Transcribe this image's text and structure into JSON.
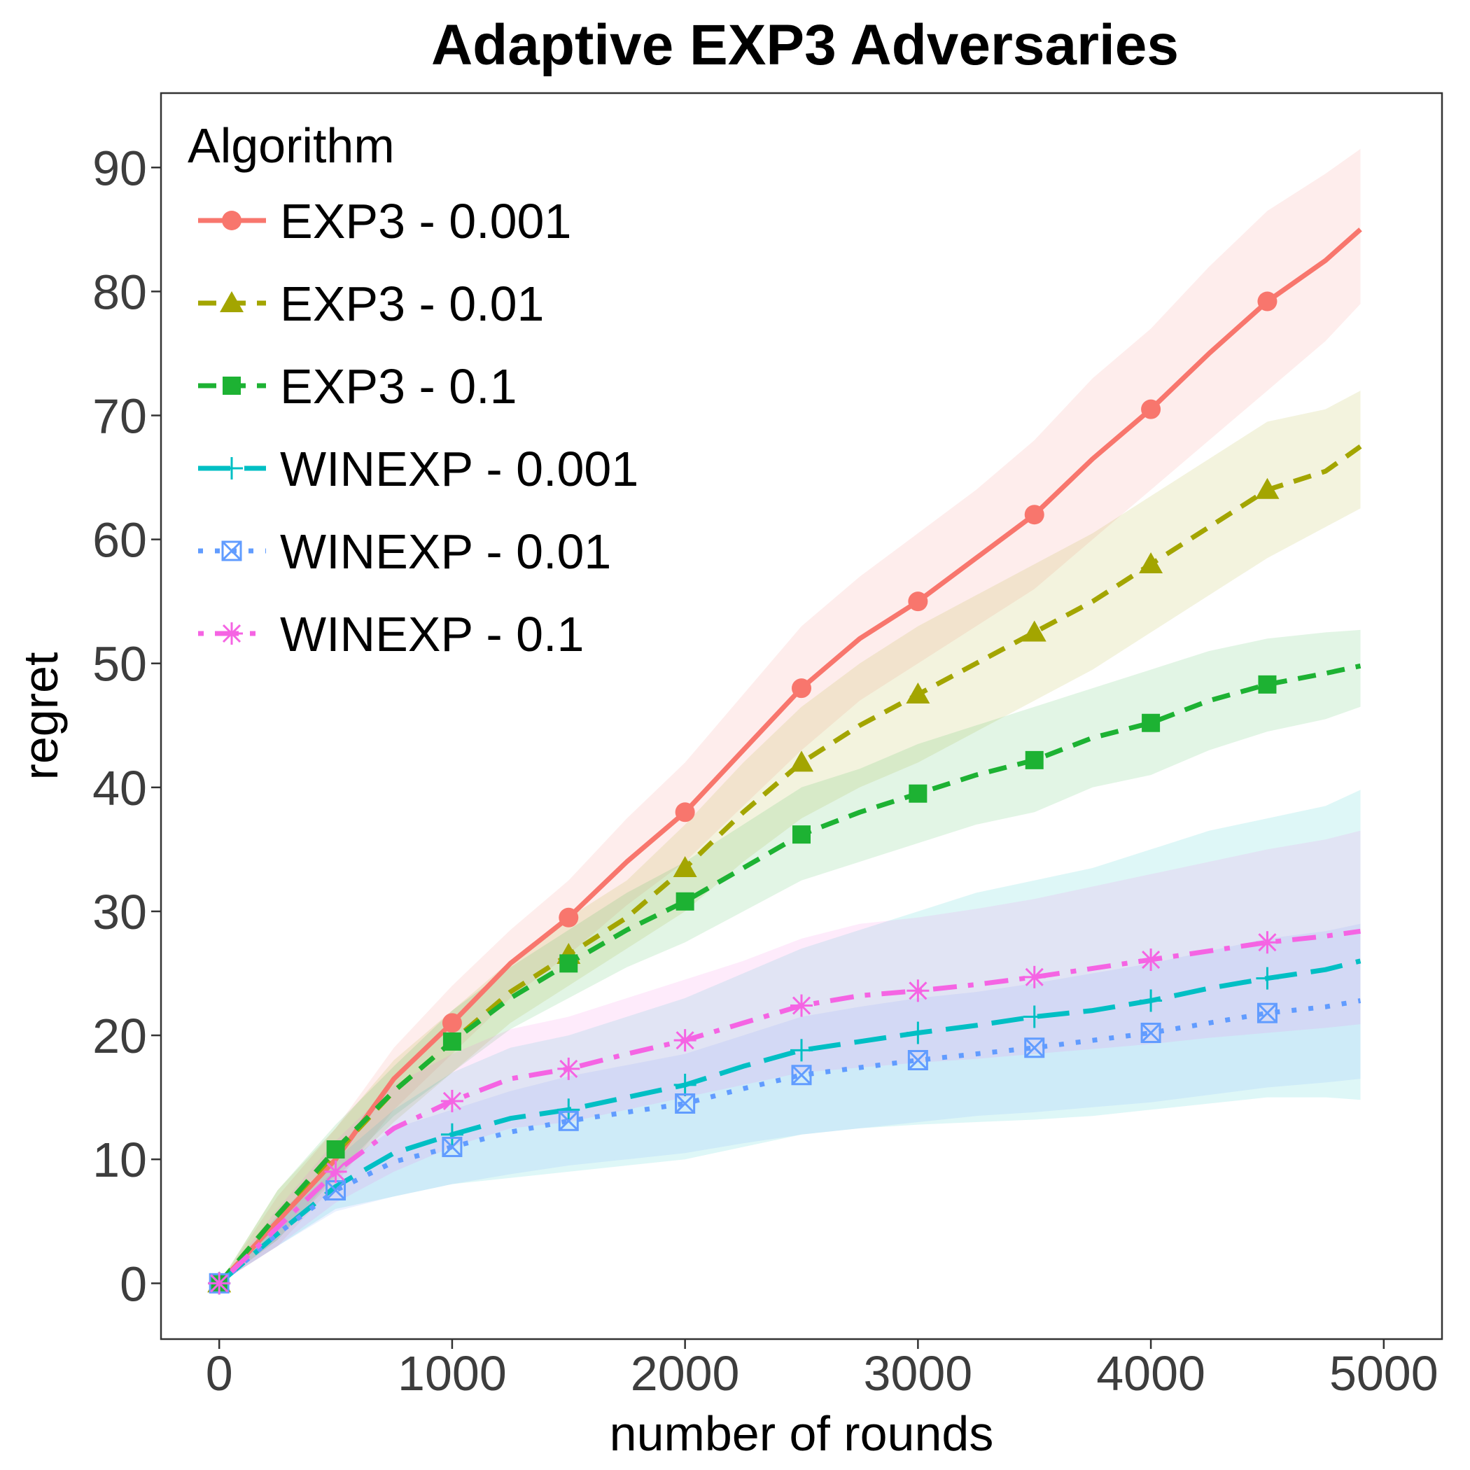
{
  "chart_data": {
    "type": "line",
    "title": "Adaptive EXP3 Adversaries",
    "xlabel": "number of rounds",
    "ylabel": "regret",
    "xlim": [
      -250,
      5250
    ],
    "ylim": [
      -4.5,
      96
    ],
    "xticks": [
      0,
      1000,
      2000,
      3000,
      4000,
      5000
    ],
    "yticks": [
      0,
      10,
      20,
      30,
      40,
      50,
      60,
      70,
      80,
      90
    ],
    "xtick_labels": [
      "0",
      "1000",
      "2000",
      "3000",
      "4000",
      "5000"
    ],
    "ytick_labels": [
      "0",
      "10",
      "20",
      "30",
      "40",
      "50",
      "60",
      "70",
      "80",
      "90"
    ],
    "grid": false,
    "legend": {
      "title": "Algorithm",
      "position": "top-left"
    },
    "series": [
      {
        "name": "EXP3 - 0.001",
        "color": "#F8766D",
        "linestyle": "solid",
        "marker": "circle",
        "x": [
          0,
          250,
          500,
          750,
          1000,
          1250,
          1500,
          1750,
          2000,
          2250,
          2500,
          2750,
          3000,
          3250,
          3500,
          3750,
          4000,
          4250,
          4500,
          4750,
          4900
        ],
        "y": [
          0,
          5,
          10,
          16.5,
          21,
          25.8,
          29.5,
          34,
          38,
          43,
          48,
          52,
          55,
          58.5,
          62,
          66.5,
          70.5,
          75,
          79.2,
          82.5,
          85
        ],
        "lower": [
          0,
          3,
          8,
          14,
          18.5,
          23,
          26.5,
          30.5,
          34,
          38.5,
          43,
          47,
          50,
          53,
          56,
          60,
          64,
          68,
          72,
          76,
          79
        ],
        "upper": [
          0,
          7,
          12.5,
          19,
          24,
          28.5,
          32.5,
          37.5,
          42,
          47.5,
          53,
          57,
          60.5,
          64,
          68,
          73,
          77,
          82,
          86.5,
          89.5,
          91.5
        ],
        "marker_x": [
          0,
          1000,
          1500,
          2000,
          2500,
          3000,
          3500,
          4000,
          4500
        ]
      },
      {
        "name": "EXP3 - 0.01",
        "color": "#A3A500",
        "linestyle": "dashed",
        "marker": "triangle",
        "x": [
          0,
          250,
          500,
          750,
          1000,
          1250,
          1500,
          1750,
          2000,
          2250,
          2500,
          2750,
          3000,
          3250,
          3500,
          3750,
          4000,
          4250,
          4500,
          4750,
          4900
        ],
        "y": [
          0,
          5.5,
          10.5,
          15.5,
          19.5,
          23.5,
          26.5,
          29.5,
          33.5,
          38,
          42,
          45,
          47.5,
          50,
          52.5,
          55,
          58,
          61,
          64,
          65.5,
          67.5
        ],
        "lower": [
          0,
          3.5,
          8.5,
          13,
          17,
          21,
          24,
          27,
          30,
          34,
          37.5,
          40,
          42,
          44.5,
          47,
          49.5,
          52.5,
          55.5,
          58.5,
          61,
          62.5
        ],
        "upper": [
          0,
          7.5,
          12.5,
          18,
          22,
          26,
          29.5,
          32.5,
          37,
          42,
          46.5,
          50,
          53,
          55.5,
          58,
          60.5,
          63.5,
          66.5,
          69.5,
          70.5,
          72
        ],
        "marker_x": [
          0,
          1500,
          2000,
          2500,
          3000,
          3500,
          4000,
          4500
        ]
      },
      {
        "name": "EXP3 - 0.1",
        "color": "#1DB233",
        "linestyle": "dashed",
        "marker": "square",
        "x": [
          0,
          250,
          500,
          750,
          1000,
          1250,
          1500,
          1750,
          2000,
          2250,
          2500,
          2750,
          3000,
          3250,
          3500,
          3750,
          4000,
          4250,
          4500,
          4750,
          4900
        ],
        "y": [
          0,
          5.5,
          10.8,
          15.5,
          19.5,
          23,
          25.8,
          28.5,
          30.8,
          33.5,
          36.2,
          38,
          39.5,
          41,
          42.2,
          44,
          45.2,
          47,
          48.3,
          49.2,
          49.8
        ],
        "lower": [
          0,
          3.5,
          8.8,
          13.5,
          17,
          20.5,
          23,
          25.5,
          27.5,
          30,
          32.5,
          34,
          35.5,
          37,
          38,
          40,
          41,
          43,
          44.5,
          45.5,
          46.5
        ],
        "upper": [
          0,
          7.5,
          12.8,
          17.5,
          22,
          25.5,
          28.5,
          31.5,
          34,
          37,
          40,
          41.5,
          43.5,
          45,
          46.5,
          48,
          49.5,
          51,
          52,
          52.5,
          52.7
        ],
        "marker_x": [
          0,
          500,
          1000,
          1500,
          2000,
          2500,
          3000,
          3500,
          4000,
          4500
        ]
      },
      {
        "name": "WINEXP - 0.001",
        "color": "#00BFC4",
        "linestyle": "longdash",
        "marker": "plus",
        "x": [
          0,
          250,
          500,
          750,
          1000,
          1250,
          1500,
          1750,
          2000,
          2250,
          2500,
          2750,
          3000,
          3250,
          3500,
          3750,
          4000,
          4250,
          4500,
          4750,
          4900
        ],
        "y": [
          0,
          4,
          7.8,
          10.5,
          12,
          13.3,
          14,
          15,
          16,
          17.5,
          18.8,
          19.5,
          20.2,
          20.8,
          21.5,
          22,
          22.8,
          23.8,
          24.6,
          25.3,
          26
        ],
        "lower": [
          0,
          3,
          6,
          7,
          8,
          8.5,
          9,
          9.5,
          10,
          11,
          12,
          12.5,
          12.8,
          13,
          13.2,
          13.5,
          14,
          14.5,
          15,
          15,
          14.8
        ],
        "upper": [
          0,
          5.5,
          10,
          14,
          17,
          19,
          20,
          21.5,
          23,
          25,
          27,
          28.5,
          30,
          31.5,
          32.5,
          33.5,
          35,
          36.5,
          37.5,
          38.5,
          39.8
        ],
        "marker_x": [
          0,
          1000,
          1500,
          2000,
          2500,
          3000,
          3500,
          4000,
          4500
        ]
      },
      {
        "name": "WINEXP - 0.01",
        "color": "#619CFF",
        "linestyle": "dotted",
        "marker": "square-cross",
        "x": [
          0,
          250,
          500,
          750,
          1000,
          1250,
          1500,
          1750,
          2000,
          2250,
          2500,
          2750,
          3000,
          3250,
          3500,
          3750,
          4000,
          4250,
          4500,
          4750,
          4900
        ],
        "y": [
          0,
          4,
          7.5,
          9.8,
          11,
          12.2,
          13.1,
          13.8,
          14.5,
          15.7,
          16.8,
          17.4,
          18,
          18.5,
          19,
          19.6,
          20.2,
          21,
          21.8,
          22.3,
          22.8
        ],
        "lower": [
          0,
          3,
          5.8,
          7,
          8,
          8.8,
          9.5,
          10,
          10.5,
          11.3,
          12,
          12.5,
          13,
          13.5,
          13.8,
          14.2,
          14.6,
          15.2,
          15.8,
          16.2,
          16.5
        ],
        "upper": [
          0,
          5,
          9.2,
          12.5,
          14,
          15.5,
          16.7,
          17.6,
          18.5,
          20,
          21.5,
          22.3,
          23,
          23.5,
          24.2,
          25,
          25.8,
          26.8,
          27.8,
          28.4,
          29
        ],
        "marker_x": [
          0,
          500,
          1000,
          1500,
          2000,
          2500,
          3000,
          3500,
          4000,
          4500
        ]
      },
      {
        "name": "WINEXP - 0.1",
        "color": "#F564E3",
        "linestyle": "dotdash",
        "marker": "asterisk",
        "x": [
          0,
          250,
          500,
          750,
          1000,
          1250,
          1500,
          1750,
          2000,
          2250,
          2500,
          2750,
          3000,
          3250,
          3500,
          3750,
          4000,
          4250,
          4500,
          4750,
          4900
        ],
        "y": [
          0,
          4.5,
          9,
          12.5,
          14.7,
          16.5,
          17.3,
          18.5,
          19.6,
          21,
          22.4,
          23.2,
          23.6,
          24.1,
          24.7,
          25.4,
          26.1,
          26.8,
          27.5,
          28,
          28.4
        ],
        "lower": [
          0,
          3,
          6.5,
          9,
          11,
          12.5,
          13,
          14,
          15,
          16,
          17,
          17.4,
          17.8,
          18.1,
          18.5,
          18.9,
          19.3,
          19.8,
          20.2,
          20.6,
          20.9
        ],
        "upper": [
          0,
          6,
          11.5,
          16,
          18.5,
          20.5,
          21.5,
          23,
          24.5,
          26,
          27.8,
          29,
          29.5,
          30.2,
          31,
          32,
          33,
          34,
          35,
          35.8,
          36.5
        ],
        "marker_x": [
          0,
          500,
          1000,
          1500,
          2000,
          2500,
          3000,
          3500,
          4000,
          4500
        ]
      }
    ]
  }
}
